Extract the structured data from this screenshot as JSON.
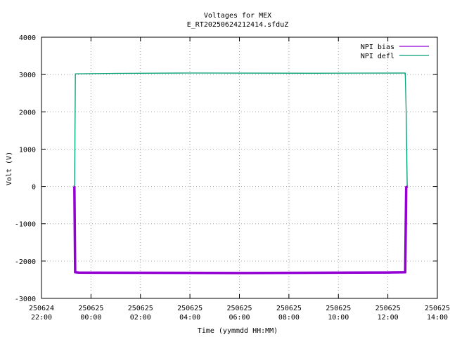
{
  "chart_data": {
    "type": "line",
    "title": "Voltages for MEX",
    "subtitle": "E_RT20250624212414.sfduZ",
    "xlabel": "Time (yymmdd HH:MM)",
    "ylabel": "Volt (V)",
    "ylim": [
      -3000,
      4000
    ],
    "yticks": [
      -3000,
      -2000,
      -1000,
      0,
      1000,
      2000,
      3000,
      4000
    ],
    "xlim_hours": [
      22,
      38
    ],
    "xticks": [
      {
        "h": 22,
        "date": "250624",
        "time": "22:00"
      },
      {
        "h": 24,
        "date": "250625",
        "time": "00:00"
      },
      {
        "h": 26,
        "date": "250625",
        "time": "02:00"
      },
      {
        "h": 28,
        "date": "250625",
        "time": "04:00"
      },
      {
        "h": 30,
        "date": "250625",
        "time": "06:00"
      },
      {
        "h": 32,
        "date": "250625",
        "time": "08:00"
      },
      {
        "h": 34,
        "date": "250625",
        "time": "10:00"
      },
      {
        "h": 36,
        "date": "250625",
        "time": "12:00"
      },
      {
        "h": 38,
        "date": "250625",
        "time": "14:00"
      }
    ],
    "grid": true,
    "legend_position": "top-right",
    "series": [
      {
        "name": "NPI bias",
        "color": "#9400d3",
        "points": [
          [
            23.3,
            0
          ],
          [
            23.33,
            -20
          ],
          [
            23.36,
            -2300
          ],
          [
            23.5,
            -2310
          ],
          [
            30,
            -2320
          ],
          [
            36.0,
            -2305
          ],
          [
            36.7,
            -2300
          ],
          [
            36.74,
            -20
          ],
          [
            36.8,
            0
          ]
        ]
      },
      {
        "name": "NPI defl",
        "color": "#009e73",
        "points": [
          [
            23.3,
            0
          ],
          [
            23.34,
            40
          ],
          [
            23.37,
            3020
          ],
          [
            25,
            3030
          ],
          [
            28,
            3040
          ],
          [
            33,
            3035
          ],
          [
            36.7,
            3040
          ],
          [
            36.74,
            2000
          ],
          [
            36.78,
            30
          ],
          [
            36.8,
            0
          ]
        ]
      }
    ]
  }
}
